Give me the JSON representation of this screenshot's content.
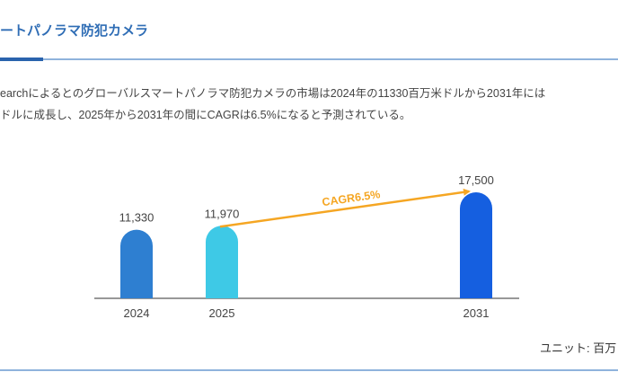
{
  "section_title": "ートパノラマ防犯カメラ",
  "description": [
    "earchによるとのグローバルスマートパノラマ防犯カメラの市場は2024年の11330百万米ドルから2031年には",
    "ドルに成長し、2025年から2031年の間にCAGRは6.5%になると予測されている。"
  ],
  "unit_label": "ユニット: 百万",
  "chart_data": {
    "type": "bar",
    "categories": [
      "2024",
      "2025",
      "2031"
    ],
    "values": [
      11330,
      11970,
      17500
    ],
    "value_labels": [
      "11,330",
      "11,970",
      "17,500"
    ],
    "colors": [
      "#2e7fd1",
      "#3ec9e6",
      "#155fe0"
    ],
    "annotation": {
      "text": "CAGR6.5%",
      "from": "2025",
      "to": "2031",
      "color": "#f5a623"
    },
    "ylim": [
      0,
      17500
    ],
    "grid": false
  }
}
